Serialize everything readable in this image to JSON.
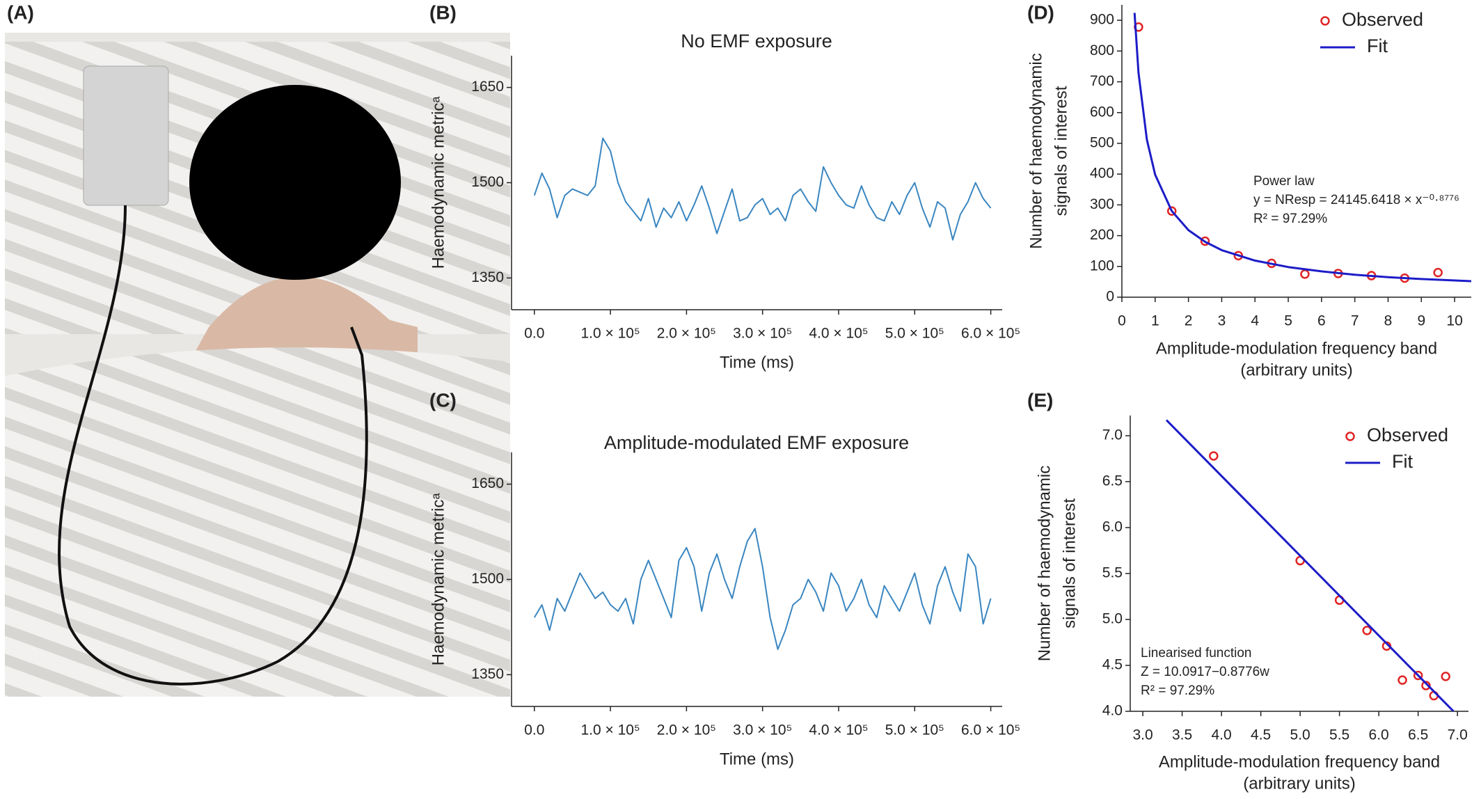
{
  "photo": {
    "panel_label": "(A)"
  },
  "chart_data": [
    {
      "type": "line",
      "panel_label": "(B)",
      "title": "No EMF exposure",
      "xlabel": "Time (ms)",
      "ylabel": "Haemodynamic metricᵃ",
      "color": "#3a86c0",
      "xlim": [
        -30000,
        615000
      ],
      "ylim": [
        1300,
        1700
      ],
      "xticks": [
        {
          "value": 0,
          "label": "0.0"
        },
        {
          "value": 100000,
          "label": "1.0 × 10⁵"
        },
        {
          "value": 200000,
          "label": "2.0 × 10⁵"
        },
        {
          "value": 300000,
          "label": "3.0 × 10⁵"
        },
        {
          "value": 400000,
          "label": "4.0 × 10⁵"
        },
        {
          "value": 500000,
          "label": "5.0 × 10⁵"
        },
        {
          "value": 600000,
          "label": "6.0 × 10⁵"
        }
      ],
      "yticks": [
        1350,
        1500,
        1650
      ],
      "x": [
        0,
        10000,
        20000,
        30000,
        40000,
        50000,
        60000,
        70000,
        80000,
        90000,
        100000,
        110000,
        120000,
        130000,
        140000,
        150000,
        160000,
        170000,
        180000,
        190000,
        200000,
        210000,
        220000,
        230000,
        240000,
        250000,
        260000,
        270000,
        280000,
        290000,
        300000,
        310000,
        320000,
        330000,
        340000,
        350000,
        360000,
        370000,
        380000,
        390000,
        400000,
        410000,
        420000,
        430000,
        440000,
        450000,
        460000,
        470000,
        480000,
        490000,
        500000,
        510000,
        520000,
        530000,
        540000,
        550000,
        560000,
        570000,
        580000,
        590000,
        600000
      ],
      "values": [
        1480,
        1515,
        1490,
        1445,
        1480,
        1490,
        1485,
        1480,
        1495,
        1570,
        1550,
        1500,
        1470,
        1455,
        1440,
        1475,
        1430,
        1460,
        1445,
        1470,
        1440,
        1465,
        1495,
        1460,
        1420,
        1455,
        1490,
        1440,
        1445,
        1465,
        1475,
        1450,
        1460,
        1440,
        1480,
        1490,
        1470,
        1455,
        1525,
        1500,
        1480,
        1465,
        1460,
        1495,
        1465,
        1445,
        1440,
        1470,
        1450,
        1480,
        1500,
        1460,
        1430,
        1470,
        1460,
        1410,
        1450,
        1470,
        1500,
        1475,
        1460
      ]
    },
    {
      "type": "line",
      "panel_label": "(C)",
      "title": "Amplitude-modulated EMF exposure",
      "xlabel": "Time (ms)",
      "ylabel": "Haemodynamic metricᵃ",
      "color": "#3a86c0",
      "xlim": [
        -30000,
        615000
      ],
      "ylim": [
        1300,
        1700
      ],
      "xticks": [
        {
          "value": 0,
          "label": "0.0"
        },
        {
          "value": 100000,
          "label": "1.0 × 10⁵"
        },
        {
          "value": 200000,
          "label": "2.0 × 10⁵"
        },
        {
          "value": 300000,
          "label": "3.0 × 10⁵"
        },
        {
          "value": 400000,
          "label": "4.0 × 10⁵"
        },
        {
          "value": 500000,
          "label": "5.0 × 10⁵"
        },
        {
          "value": 600000,
          "label": "6.0 × 10⁵"
        }
      ],
      "yticks": [
        1350,
        1500,
        1650
      ],
      "x": [
        0,
        10000,
        20000,
        30000,
        40000,
        50000,
        60000,
        70000,
        80000,
        90000,
        100000,
        110000,
        120000,
        130000,
        140000,
        150000,
        160000,
        170000,
        180000,
        190000,
        200000,
        210000,
        220000,
        230000,
        240000,
        250000,
        260000,
        270000,
        280000,
        290000,
        300000,
        310000,
        320000,
        330000,
        340000,
        350000,
        360000,
        370000,
        380000,
        390000,
        400000,
        410000,
        420000,
        430000,
        440000,
        450000,
        460000,
        470000,
        480000,
        490000,
        500000,
        510000,
        520000,
        530000,
        540000,
        550000,
        560000,
        570000,
        580000,
        590000,
        600000
      ],
      "values": [
        1440,
        1460,
        1420,
        1470,
        1450,
        1480,
        1510,
        1490,
        1470,
        1480,
        1460,
        1450,
        1470,
        1430,
        1500,
        1530,
        1500,
        1470,
        1440,
        1530,
        1550,
        1520,
        1450,
        1510,
        1540,
        1500,
        1470,
        1520,
        1560,
        1580,
        1520,
        1440,
        1390,
        1420,
        1460,
        1470,
        1500,
        1480,
        1450,
        1510,
        1490,
        1450,
        1470,
        1500,
        1460,
        1440,
        1490,
        1470,
        1450,
        1480,
        1510,
        1460,
        1430,
        1490,
        1520,
        1480,
        1450,
        1540,
        1520,
        1430,
        1470
      ]
    },
    {
      "type": "scatter",
      "panel_label": "(D)",
      "xlabel": [
        "Amplitude-modulation frequency band",
        "(arbitrary units)"
      ],
      "ylabel": [
        "Number of haemodynamic",
        "signals of interest"
      ],
      "xlim": [
        0,
        10.5
      ],
      "ylim": [
        0,
        950
      ],
      "xticks": [
        0,
        1,
        2,
        3,
        4,
        5,
        6,
        7,
        8,
        9,
        10
      ],
      "yticks": [
        0,
        100,
        200,
        300,
        400,
        500,
        600,
        700,
        800,
        900
      ],
      "legend": "upper right",
      "annotation": [
        "Power law",
        "y = NResp = 24145.6418 × x⁻⁰·⁸⁷⁷⁶",
        "R² = 97.29%"
      ],
      "series": [
        {
          "name": "Observed",
          "style": "points",
          "color": "#e02424",
          "x": [
            0.5,
            1.5,
            2.5,
            3.5,
            4.5,
            5.5,
            6.5,
            7.5,
            8.5,
            9.5
          ],
          "values": [
            878,
            280,
            182,
            135,
            110,
            75,
            77,
            70,
            62,
            80
          ]
        },
        {
          "name": "Fit",
          "style": "line",
          "color": "#1c1cc8",
          "x": [
            0.38,
            0.5,
            0.75,
            1,
            1.5,
            2,
            2.5,
            3,
            4,
            5,
            6,
            7,
            8,
            9,
            10.5
          ],
          "values": [
            924,
            729,
            512,
            398,
            280,
            218,
            180,
            153,
            119,
            98,
            84,
            73,
            65,
            59,
            52
          ]
        }
      ]
    },
    {
      "type": "scatter",
      "panel_label": "(E)",
      "xlabel": [
        "Amplitude-modulation frequency band",
        "(arbitrary units)"
      ],
      "ylabel": [
        "Number of haemodynamic",
        "signals of interest"
      ],
      "xlim": [
        2.84,
        7.14
      ],
      "ylim": [
        4.0,
        7.22
      ],
      "xticks": [
        {
          "value": 3,
          "label": "3.0"
        },
        3.5,
        {
          "value": 4,
          "label": "4.0"
        },
        4.5,
        {
          "value": 5,
          "label": "5.0"
        },
        5.5,
        {
          "value": 6,
          "label": "6.0"
        },
        6.5,
        {
          "value": 7,
          "label": "7.0"
        }
      ],
      "yticks": [
        {
          "value": 4,
          "label": "4.0"
        },
        4.5,
        {
          "value": 5,
          "label": "5.0"
        },
        5.5,
        {
          "value": 6,
          "label": "6.0"
        },
        6.5,
        {
          "value": 7,
          "label": "7.0"
        }
      ],
      "legend": "upper right",
      "annotation": [
        "Linearised function",
        "Z = 10.0917−0.8776w",
        "R² = 97.29%"
      ],
      "series": [
        {
          "name": "Observed",
          "style": "points",
          "color": "#e02424",
          "x": [
            3.9,
            5.0,
            5.5,
            5.85,
            6.1,
            6.3,
            6.5,
            6.6,
            6.7,
            6.85
          ],
          "values": [
            6.78,
            5.64,
            5.21,
            4.88,
            4.71,
            4.34,
            4.39,
            4.28,
            4.17,
            4.38
          ]
        },
        {
          "name": "Fit",
          "style": "line",
          "color": "#1c1cc8",
          "x": [
            3.3,
            6.95
          ],
          "values": [
            7.17,
            4.0
          ]
        }
      ]
    }
  ]
}
